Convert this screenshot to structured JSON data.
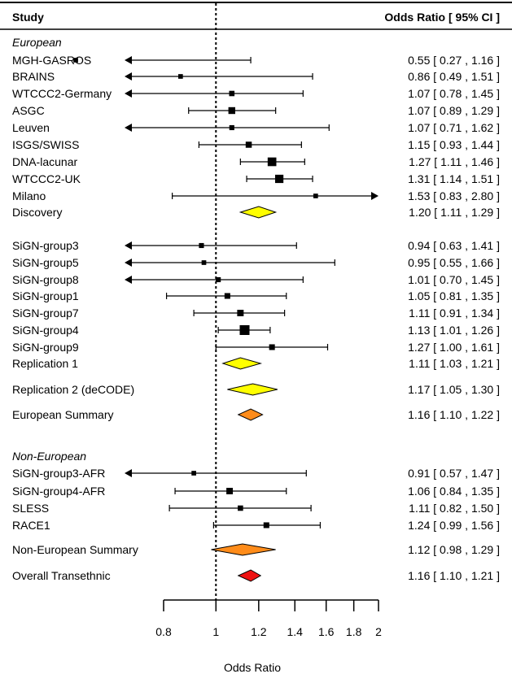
{
  "header": {
    "study_label": "Study",
    "or_label": "Odds Ratio [ 95% CI ]"
  },
  "chart_data": {
    "type": "forest",
    "xlabel": "Odds Ratio",
    "x_scale": "log",
    "xlim": [
      0.8,
      2
    ],
    "x_ticks": [
      0.8,
      1,
      1.2,
      1.4,
      1.6,
      1.8,
      2
    ],
    "x_tick_labels": [
      "0.8",
      "1",
      "1.2",
      "1.4",
      "1.6",
      "1.8",
      "2"
    ],
    "reference_line": 1,
    "groups": [
      {
        "label": "European"
      },
      {
        "label": "Non-European"
      }
    ],
    "rows": [
      {
        "group": "European",
        "study": "MGH-GASROS",
        "type": "study",
        "or": 0.55,
        "lo": 0.27,
        "hi": 1.16,
        "weight": 0.3,
        "text": "0.55 [ 0.27 , 1.16 ]"
      },
      {
        "group": "European",
        "study": "BRAINS",
        "type": "study",
        "or": 0.86,
        "lo": 0.49,
        "hi": 1.51,
        "weight": 0.3,
        "text": "0.86 [ 0.49 , 1.51 ]"
      },
      {
        "group": "European",
        "study": "WTCCC2-Germany",
        "type": "study",
        "or": 1.07,
        "lo": 0.78,
        "hi": 1.45,
        "weight": 0.4,
        "text": "1.07 [ 0.78 , 1.45 ]"
      },
      {
        "group": "European",
        "study": "ASGC",
        "type": "study",
        "or": 1.07,
        "lo": 0.89,
        "hi": 1.29,
        "weight": 0.6,
        "text": "1.07 [ 0.89 , 1.29 ]"
      },
      {
        "group": "European",
        "study": "Leuven",
        "type": "study",
        "or": 1.07,
        "lo": 0.71,
        "hi": 1.62,
        "weight": 0.35,
        "text": "1.07 [ 0.71 , 1.62 ]"
      },
      {
        "group": "European",
        "study": "ISGS/SWISS",
        "type": "study",
        "or": 1.15,
        "lo": 0.93,
        "hi": 1.44,
        "weight": 0.5,
        "text": "1.15 [ 0.93 , 1.44 ]"
      },
      {
        "group": "European",
        "study": "DNA-lacunar",
        "type": "study",
        "or": 1.27,
        "lo": 1.11,
        "hi": 1.46,
        "weight": 0.85,
        "text": "1.27 [ 1.11 , 1.46 ]"
      },
      {
        "group": "European",
        "study": "WTCCC2-UK",
        "type": "study",
        "or": 1.31,
        "lo": 1.14,
        "hi": 1.51,
        "weight": 0.8,
        "text": "1.31 [ 1.14 , 1.51 ]"
      },
      {
        "group": "European",
        "study": "Milano",
        "type": "study",
        "or": 1.53,
        "lo": 0.83,
        "hi": 2.8,
        "weight": 0.3,
        "text": "1.53 [ 0.83 , 2.80 ]"
      },
      {
        "group": "European",
        "study": "Discovery",
        "type": "summary",
        "or": 1.2,
        "lo": 1.11,
        "hi": 1.29,
        "color": "#ffff00",
        "text": "1.20 [ 1.11 , 1.29 ]"
      },
      {
        "group": "European",
        "study": "SiGN-group3",
        "type": "study",
        "or": 0.94,
        "lo": 0.63,
        "hi": 1.41,
        "weight": 0.35,
        "text": "0.94 [ 0.63 , 1.41 ]"
      },
      {
        "group": "European",
        "study": "SiGN-group5",
        "type": "study",
        "or": 0.95,
        "lo": 0.55,
        "hi": 1.66,
        "weight": 0.3,
        "text": "0.95 [ 0.55 , 1.66 ]"
      },
      {
        "group": "European",
        "study": "SiGN-group8",
        "type": "study",
        "or": 1.01,
        "lo": 0.7,
        "hi": 1.45,
        "weight": 0.35,
        "text": "1.01 [ 0.70 , 1.45 ]"
      },
      {
        "group": "European",
        "study": "SiGN-group1",
        "type": "study",
        "or": 1.05,
        "lo": 0.81,
        "hi": 1.35,
        "weight": 0.45,
        "text": "1.05 [ 0.81 , 1.35 ]"
      },
      {
        "group": "European",
        "study": "SiGN-group7",
        "type": "study",
        "or": 1.11,
        "lo": 0.91,
        "hi": 1.34,
        "weight": 0.55,
        "text": "1.11 [ 0.91 , 1.34 ]"
      },
      {
        "group": "European",
        "study": "SiGN-group4",
        "type": "study",
        "or": 1.13,
        "lo": 1.01,
        "hi": 1.26,
        "weight": 1.0,
        "text": "1.13 [ 1.01 , 1.26 ]"
      },
      {
        "group": "European",
        "study": "SiGN-group9",
        "type": "study",
        "or": 1.27,
        "lo": 1.0,
        "hi": 1.61,
        "weight": 0.45,
        "text": "1.27 [ 1.00 , 1.61 ]"
      },
      {
        "group": "European",
        "study": "Replication 1",
        "type": "summary",
        "or": 1.11,
        "lo": 1.03,
        "hi": 1.21,
        "color": "#ffff00",
        "text": "1.11 [ 1.03 , 1.21 ]"
      },
      {
        "group": "European",
        "study": "Replication 2 (deCODE)",
        "type": "summary",
        "or": 1.17,
        "lo": 1.05,
        "hi": 1.3,
        "color": "#ffff00",
        "text": "1.17 [ 1.05 , 1.30 ]"
      },
      {
        "group": "European",
        "study": "European Summary",
        "type": "summary",
        "or": 1.16,
        "lo": 1.1,
        "hi": 1.22,
        "color": "#ff8c1a",
        "text": "1.16 [ 1.10 , 1.22 ]"
      },
      {
        "group": "Non-European",
        "study": "SiGN-group3-AFR",
        "type": "study",
        "or": 0.91,
        "lo": 0.57,
        "hi": 1.47,
        "weight": 0.3,
        "text": "0.91 [ 0.57 , 1.47 ]"
      },
      {
        "group": "Non-European",
        "study": "SiGN-group4-AFR",
        "type": "study",
        "or": 1.06,
        "lo": 0.84,
        "hi": 1.35,
        "weight": 0.55,
        "text": "1.06 [ 0.84 , 1.35 ]"
      },
      {
        "group": "Non-European",
        "study": "SLESS",
        "type": "study",
        "or": 1.11,
        "lo": 0.82,
        "hi": 1.5,
        "weight": 0.4,
        "text": "1.11 [ 0.82 , 1.50 ]"
      },
      {
        "group": "Non-European",
        "study": "RACE1",
        "type": "study",
        "or": 1.24,
        "lo": 0.99,
        "hi": 1.56,
        "weight": 0.45,
        "text": "1.24 [ 0.99 , 1.56 ]"
      },
      {
        "group": "Non-European",
        "study": "Non-European Summary",
        "type": "summary",
        "or": 1.12,
        "lo": 0.98,
        "hi": 1.29,
        "color": "#ff8c1a",
        "text": "1.12 [ 0.98 , 1.29 ]"
      },
      {
        "group": "Overall",
        "study": "Overall Transethnic",
        "type": "summary",
        "or": 1.16,
        "lo": 1.1,
        "hi": 1.21,
        "color": "#ee1111",
        "text": "1.16 [ 1.10 , 1.21 ]"
      }
    ]
  }
}
